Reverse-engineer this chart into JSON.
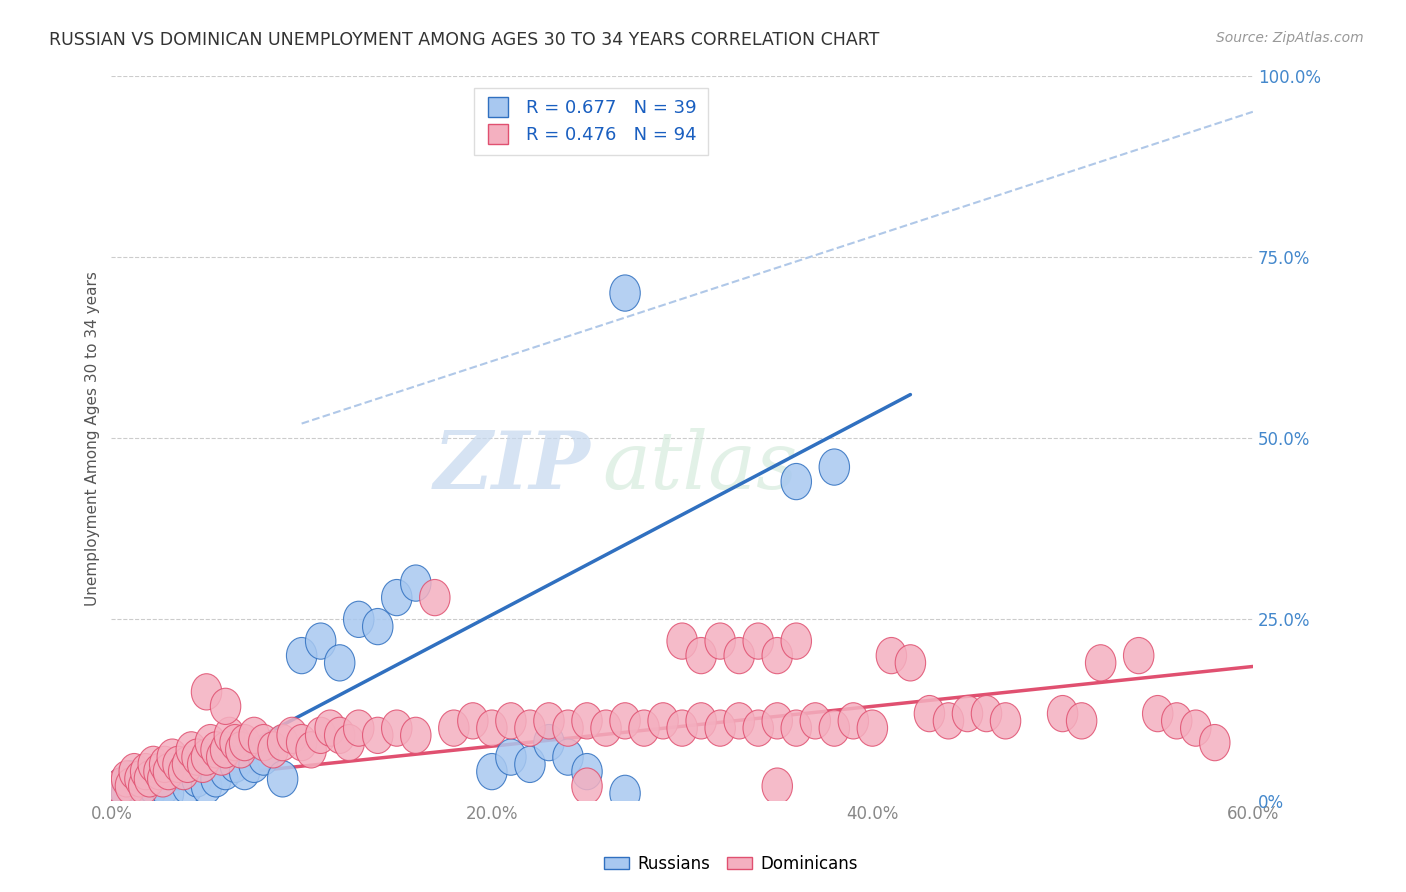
{
  "title": "RUSSIAN VS DOMINICAN UNEMPLOYMENT AMONG AGES 30 TO 34 YEARS CORRELATION CHART",
  "source": "Source: ZipAtlas.com",
  "ylabel": "Unemployment Among Ages 30 to 34 years",
  "xlabel_ticks": [
    "0.0%",
    "20.0%",
    "40.0%",
    "60.0%"
  ],
  "xlabel_vals": [
    0.0,
    0.2,
    0.4,
    0.6
  ],
  "ylabel_ticks": [
    "0%",
    "25.0%",
    "50.0%",
    "75.0%",
    "100.0%"
  ],
  "ylabel_vals": [
    0.0,
    0.25,
    0.5,
    0.75,
    1.0
  ],
  "xlim": [
    0.0,
    0.6
  ],
  "ylim": [
    0.0,
    1.0
  ],
  "russian_color": "#a8c8f0",
  "dominican_color": "#f4b0c0",
  "russian_line_color": "#3070c0",
  "dominican_line_color": "#e05070",
  "dashed_line_color": "#b0c8e8",
  "legend_r_color": "#1a5fc0",
  "russian_R": 0.677,
  "russian_N": 39,
  "dominican_R": 0.476,
  "dominican_N": 94,
  "watermark_zip": "ZIP",
  "watermark_atlas": "atlas",
  "background_color": "#ffffff",
  "grid_color": "#cccccc",
  "right_tick_color": "#4488cc",
  "axis_tick_color": "#888888",
  "russian_line_x": [
    0.0,
    0.42
  ],
  "russian_line_y": [
    -0.02,
    0.56
  ],
  "dominican_line_x": [
    0.0,
    0.6
  ],
  "dominican_line_y": [
    0.02,
    0.185
  ],
  "dashed_line_x": [
    0.1,
    0.6
  ],
  "dashed_line_y": [
    0.52,
    0.95
  ],
  "russian_scatter": [
    [
      0.005,
      0.02
    ],
    [
      0.008,
      0.01
    ],
    [
      0.01,
      0.03
    ],
    [
      0.012,
      0.01
    ],
    [
      0.015,
      0.02
    ],
    [
      0.018,
      0.03
    ],
    [
      0.02,
      0.01
    ],
    [
      0.022,
      0.02
    ],
    [
      0.025,
      0.03
    ],
    [
      0.028,
      0.02
    ],
    [
      0.03,
      0.01
    ],
    [
      0.035,
      0.04
    ],
    [
      0.04,
      0.02
    ],
    [
      0.045,
      0.03
    ],
    [
      0.05,
      0.02
    ],
    [
      0.055,
      0.03
    ],
    [
      0.06,
      0.04
    ],
    [
      0.065,
      0.05
    ],
    [
      0.07,
      0.04
    ],
    [
      0.075,
      0.05
    ],
    [
      0.08,
      0.06
    ],
    [
      0.09,
      0.03
    ],
    [
      0.1,
      0.2
    ],
    [
      0.11,
      0.22
    ],
    [
      0.12,
      0.19
    ],
    [
      0.13,
      0.25
    ],
    [
      0.14,
      0.24
    ],
    [
      0.15,
      0.28
    ],
    [
      0.16,
      0.3
    ],
    [
      0.2,
      0.04
    ],
    [
      0.21,
      0.06
    ],
    [
      0.22,
      0.05
    ],
    [
      0.23,
      0.08
    ],
    [
      0.24,
      0.06
    ],
    [
      0.25,
      0.04
    ],
    [
      0.27,
      0.7
    ],
    [
      0.36,
      0.44
    ],
    [
      0.38,
      0.46
    ],
    [
      0.27,
      0.01
    ]
  ],
  "dominican_scatter": [
    [
      0.005,
      0.02
    ],
    [
      0.008,
      0.03
    ],
    [
      0.01,
      0.02
    ],
    [
      0.012,
      0.04
    ],
    [
      0.015,
      0.03
    ],
    [
      0.017,
      0.02
    ],
    [
      0.018,
      0.04
    ],
    [
      0.02,
      0.03
    ],
    [
      0.022,
      0.05
    ],
    [
      0.025,
      0.04
    ],
    [
      0.027,
      0.03
    ],
    [
      0.028,
      0.05
    ],
    [
      0.03,
      0.04
    ],
    [
      0.032,
      0.06
    ],
    [
      0.035,
      0.05
    ],
    [
      0.038,
      0.04
    ],
    [
      0.04,
      0.05
    ],
    [
      0.042,
      0.07
    ],
    [
      0.045,
      0.06
    ],
    [
      0.048,
      0.05
    ],
    [
      0.05,
      0.06
    ],
    [
      0.052,
      0.08
    ],
    [
      0.055,
      0.07
    ],
    [
      0.058,
      0.06
    ],
    [
      0.06,
      0.07
    ],
    [
      0.062,
      0.09
    ],
    [
      0.065,
      0.08
    ],
    [
      0.068,
      0.07
    ],
    [
      0.07,
      0.08
    ],
    [
      0.075,
      0.09
    ],
    [
      0.08,
      0.08
    ],
    [
      0.085,
      0.07
    ],
    [
      0.09,
      0.08
    ],
    [
      0.095,
      0.09
    ],
    [
      0.1,
      0.08
    ],
    [
      0.105,
      0.07
    ],
    [
      0.11,
      0.09
    ],
    [
      0.115,
      0.1
    ],
    [
      0.12,
      0.09
    ],
    [
      0.125,
      0.08
    ],
    [
      0.13,
      0.1
    ],
    [
      0.14,
      0.09
    ],
    [
      0.15,
      0.1
    ],
    [
      0.16,
      0.09
    ],
    [
      0.05,
      0.15
    ],
    [
      0.06,
      0.13
    ],
    [
      0.17,
      0.28
    ],
    [
      0.18,
      0.1
    ],
    [
      0.19,
      0.11
    ],
    [
      0.2,
      0.1
    ],
    [
      0.21,
      0.11
    ],
    [
      0.22,
      0.1
    ],
    [
      0.23,
      0.11
    ],
    [
      0.24,
      0.1
    ],
    [
      0.25,
      0.11
    ],
    [
      0.26,
      0.1
    ],
    [
      0.27,
      0.11
    ],
    [
      0.28,
      0.1
    ],
    [
      0.29,
      0.11
    ],
    [
      0.3,
      0.22
    ],
    [
      0.31,
      0.2
    ],
    [
      0.32,
      0.22
    ],
    [
      0.33,
      0.2
    ],
    [
      0.34,
      0.22
    ],
    [
      0.35,
      0.2
    ],
    [
      0.36,
      0.22
    ],
    [
      0.3,
      0.1
    ],
    [
      0.31,
      0.11
    ],
    [
      0.32,
      0.1
    ],
    [
      0.33,
      0.11
    ],
    [
      0.34,
      0.1
    ],
    [
      0.35,
      0.11
    ],
    [
      0.36,
      0.1
    ],
    [
      0.37,
      0.11
    ],
    [
      0.38,
      0.1
    ],
    [
      0.39,
      0.11
    ],
    [
      0.4,
      0.1
    ],
    [
      0.41,
      0.2
    ],
    [
      0.42,
      0.19
    ],
    [
      0.43,
      0.12
    ],
    [
      0.44,
      0.11
    ],
    [
      0.45,
      0.12
    ],
    [
      0.46,
      0.12
    ],
    [
      0.47,
      0.11
    ],
    [
      0.5,
      0.12
    ],
    [
      0.51,
      0.11
    ],
    [
      0.52,
      0.19
    ],
    [
      0.54,
      0.2
    ],
    [
      0.55,
      0.12
    ],
    [
      0.56,
      0.11
    ],
    [
      0.57,
      0.1
    ],
    [
      0.58,
      0.08
    ],
    [
      0.25,
      0.02
    ],
    [
      0.35,
      0.02
    ]
  ]
}
